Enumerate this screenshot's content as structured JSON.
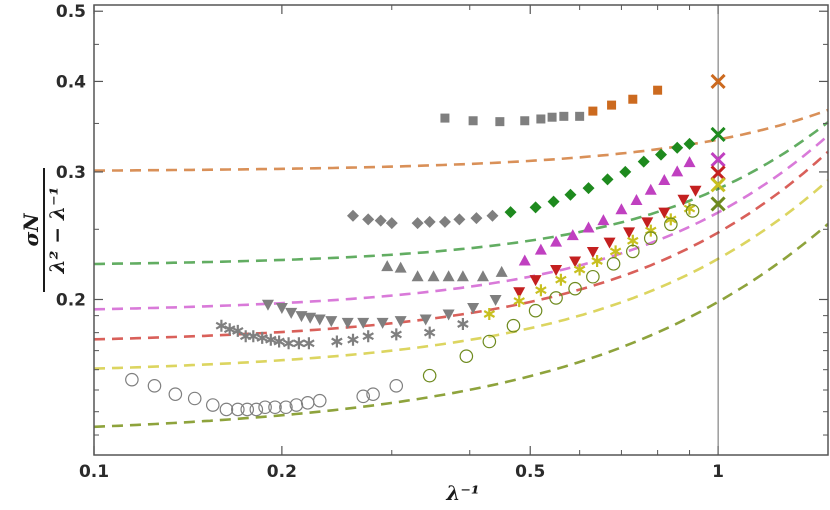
{
  "chart_data": {
    "type": "scatter",
    "x_scale": "log",
    "y_scale": "log",
    "xlim": [
      0.1,
      1.5
    ],
    "ylim": [
      0.122,
      0.51
    ],
    "xlabel": "λ⁻¹",
    "ylabel_numerator": "σN",
    "ylabel_denominator": "λ² − λ⁻¹",
    "x_ticks_major": [
      {
        "value": 0.1,
        "label": "0.1"
      },
      {
        "value": 0.2,
        "label": "0.2"
      },
      {
        "value": 0.5,
        "label": "0.5"
      },
      {
        "value": 1,
        "label": "1"
      }
    ],
    "x_ticks_minor": [
      0.3,
      0.4,
      0.6,
      0.7,
      0.8,
      0.9
    ],
    "y_ticks_major": [
      {
        "value": 0.2,
        "label": "0.2"
      },
      {
        "value": 0.3,
        "label": "0.3"
      },
      {
        "value": 0.4,
        "label": "0.4"
      },
      {
        "value": 0.5,
        "label": "0.5"
      }
    ],
    "y_ticks_minor": [
      0.13,
      0.14,
      0.15,
      0.16,
      0.17,
      0.18,
      0.19,
      0.25,
      0.35,
      0.45
    ],
    "reference_line_x": 1,
    "series": [
      {
        "marker": "square",
        "color_gray": "#7f7f7f",
        "color_colored": "#cc6a1f",
        "fit_color": "#d99058",
        "fit": [
          0.3,
          0.0105,
          0.022
        ],
        "limit_y": 0.4,
        "x": [
          0.365,
          0.405,
          0.447,
          0.49,
          0.52,
          0.542,
          0.566,
          0.6,
          0.63,
          0.675,
          0.73,
          0.8
        ],
        "y": [
          0.356,
          0.353,
          0.352,
          0.353,
          0.355,
          0.357,
          0.358,
          0.358,
          0.364,
          0.371,
          0.378,
          0.389
        ],
        "colored_from": 0.61
      },
      {
        "marker": "diamond",
        "color_gray": "#7f7f7f",
        "color_colored": "#1e8a1e",
        "fit_color": "#62ad62",
        "fit": [
          0.222,
          0.0143,
          0.048
        ],
        "limit_y": 0.338,
        "x": [
          0.26,
          0.275,
          0.288,
          0.3,
          0.33,
          0.345,
          0.365,
          0.385,
          0.41,
          0.435,
          0.465,
          0.51,
          0.545,
          0.58,
          0.62,
          0.665,
          0.71,
          0.76,
          0.81,
          0.86,
          0.9
        ],
        "y": [
          0.261,
          0.258,
          0.257,
          0.255,
          0.255,
          0.256,
          0.256,
          0.258,
          0.259,
          0.261,
          0.264,
          0.268,
          0.273,
          0.279,
          0.285,
          0.293,
          0.3,
          0.31,
          0.317,
          0.324,
          0.328
        ],
        "colored_from": 0.45
      },
      {
        "marker": "triangle-up",
        "color_gray": "#7f7f7f",
        "color_colored": "#c040c0",
        "fit_color": "#d97ad9",
        "fit": [
          0.191,
          0.0237,
          0.049
        ],
        "limit_y": 0.312,
        "x": [
          0.295,
          0.31,
          0.33,
          0.35,
          0.37,
          0.39,
          0.42,
          0.45,
          0.49,
          0.52,
          0.55,
          0.585,
          0.62,
          0.655,
          0.7,
          0.74,
          0.78,
          0.82,
          0.86,
          0.9
        ],
        "y": [
          0.222,
          0.221,
          0.215,
          0.215,
          0.215,
          0.215,
          0.215,
          0.218,
          0.226,
          0.234,
          0.24,
          0.245,
          0.251,
          0.257,
          0.266,
          0.274,
          0.283,
          0.292,
          0.3,
          0.309
        ],
        "colored_from": 0.48
      },
      {
        "marker": "triangle-down",
        "color_gray": "#7f7f7f",
        "color_colored": "#c42020",
        "fit_color": "#d9605a",
        "fit": [
          0.173,
          0.0274,
          0.047
        ],
        "limit_y": 0.299,
        "x": [
          0.19,
          0.2,
          0.207,
          0.215,
          0.222,
          0.23,
          0.24,
          0.255,
          0.27,
          0.29,
          0.31,
          0.34,
          0.37,
          0.405,
          0.44,
          0.48,
          0.51,
          0.55,
          0.59,
          0.63,
          0.67,
          0.72,
          0.77,
          0.82,
          0.88,
          0.92
        ],
        "y": [
          0.197,
          0.195,
          0.192,
          0.19,
          0.189,
          0.188,
          0.187,
          0.186,
          0.186,
          0.186,
          0.187,
          0.188,
          0.191,
          0.195,
          0.2,
          0.205,
          0.213,
          0.22,
          0.226,
          0.233,
          0.24,
          0.248,
          0.256,
          0.264,
          0.275,
          0.283
        ],
        "colored_from": 0.47
      },
      {
        "marker": "asterisk",
        "color_gray": "#7f7f7f",
        "color_colored": "#c8c020",
        "fit_color": "#dcd560",
        "fit": [
          0.157,
          0.0316,
          0.039
        ],
        "limit_y": 0.288,
        "x": [
          0.16,
          0.165,
          0.17,
          0.175,
          0.18,
          0.186,
          0.192,
          0.198,
          0.205,
          0.213,
          0.221,
          0.245,
          0.26,
          0.275,
          0.305,
          0.345,
          0.39,
          0.43,
          0.48,
          0.52,
          0.56,
          0.6,
          0.64,
          0.685,
          0.73,
          0.78,
          0.84,
          0.9
        ],
        "y": [
          0.184,
          0.182,
          0.181,
          0.178,
          0.178,
          0.177,
          0.176,
          0.175,
          0.174,
          0.174,
          0.174,
          0.175,
          0.176,
          0.178,
          0.179,
          0.18,
          0.185,
          0.191,
          0.199,
          0.206,
          0.213,
          0.22,
          0.226,
          0.233,
          0.241,
          0.249,
          0.258,
          0.267
        ],
        "colored_from": 0.42
      },
      {
        "marker": "circle-open",
        "color_gray": "#7f7f7f",
        "color_colored": "#6e8a1e",
        "fit_color": "#8ea33c",
        "fit": [
          0.129,
          0.0415,
          0.028
        ],
        "limit_y": 0.271,
        "x": [
          0.115,
          0.125,
          0.135,
          0.145,
          0.155,
          0.163,
          0.17,
          0.176,
          0.182,
          0.188,
          0.195,
          0.203,
          0.211,
          0.22,
          0.23,
          0.27,
          0.28,
          0.305,
          0.345,
          0.395,
          0.43,
          0.47,
          0.51,
          0.55,
          0.59,
          0.63,
          0.68,
          0.73,
          0.78,
          0.84,
          0.91
        ],
        "y": [
          0.155,
          0.152,
          0.148,
          0.146,
          0.143,
          0.141,
          0.141,
          0.141,
          0.141,
          0.142,
          0.142,
          0.142,
          0.143,
          0.144,
          0.145,
          0.147,
          0.148,
          0.152,
          0.157,
          0.167,
          0.175,
          0.184,
          0.193,
          0.201,
          0.207,
          0.215,
          0.224,
          0.233,
          0.243,
          0.254,
          0.265
        ],
        "colored_from": 0.33
      }
    ]
  }
}
